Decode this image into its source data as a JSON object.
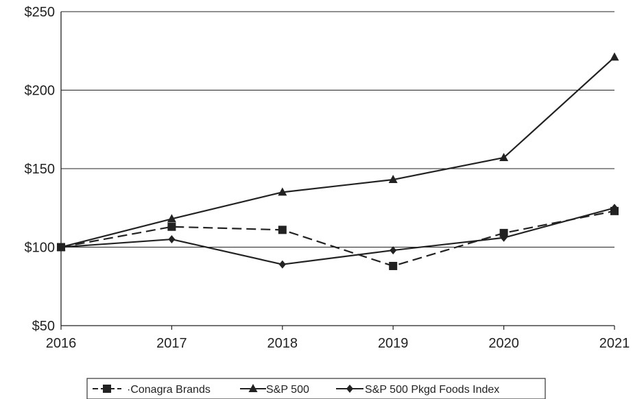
{
  "chart_data": {
    "type": "line",
    "categories": [
      "2016",
      "2017",
      "2018",
      "2019",
      "2020",
      "2021"
    ],
    "series": [
      {
        "name": "·Conagra Brands",
        "values": [
          100,
          113,
          111,
          88,
          109,
          123
        ],
        "marker": "square",
        "dash": true,
        "color": "#222222"
      },
      {
        "name": "S&P 500",
        "values": [
          100,
          118,
          135,
          143,
          157,
          221
        ],
        "marker": "triangle",
        "dash": false,
        "color": "#222222"
      },
      {
        "name": "S&P 500 Pkgd Foods Index",
        "values": [
          100,
          105,
          89,
          98,
          106,
          125
        ],
        "marker": "diamond",
        "dash": false,
        "color": "#222222"
      }
    ],
    "yticks": [
      50,
      100,
      150,
      200,
      250
    ],
    "ytick_labels": [
      "$50",
      "$100",
      "$150",
      "$200",
      "$250"
    ],
    "ylim": [
      50,
      250
    ],
    "grid": true,
    "legend_position": "bottom",
    "title": "",
    "xlabel": "",
    "ylabel": ""
  }
}
